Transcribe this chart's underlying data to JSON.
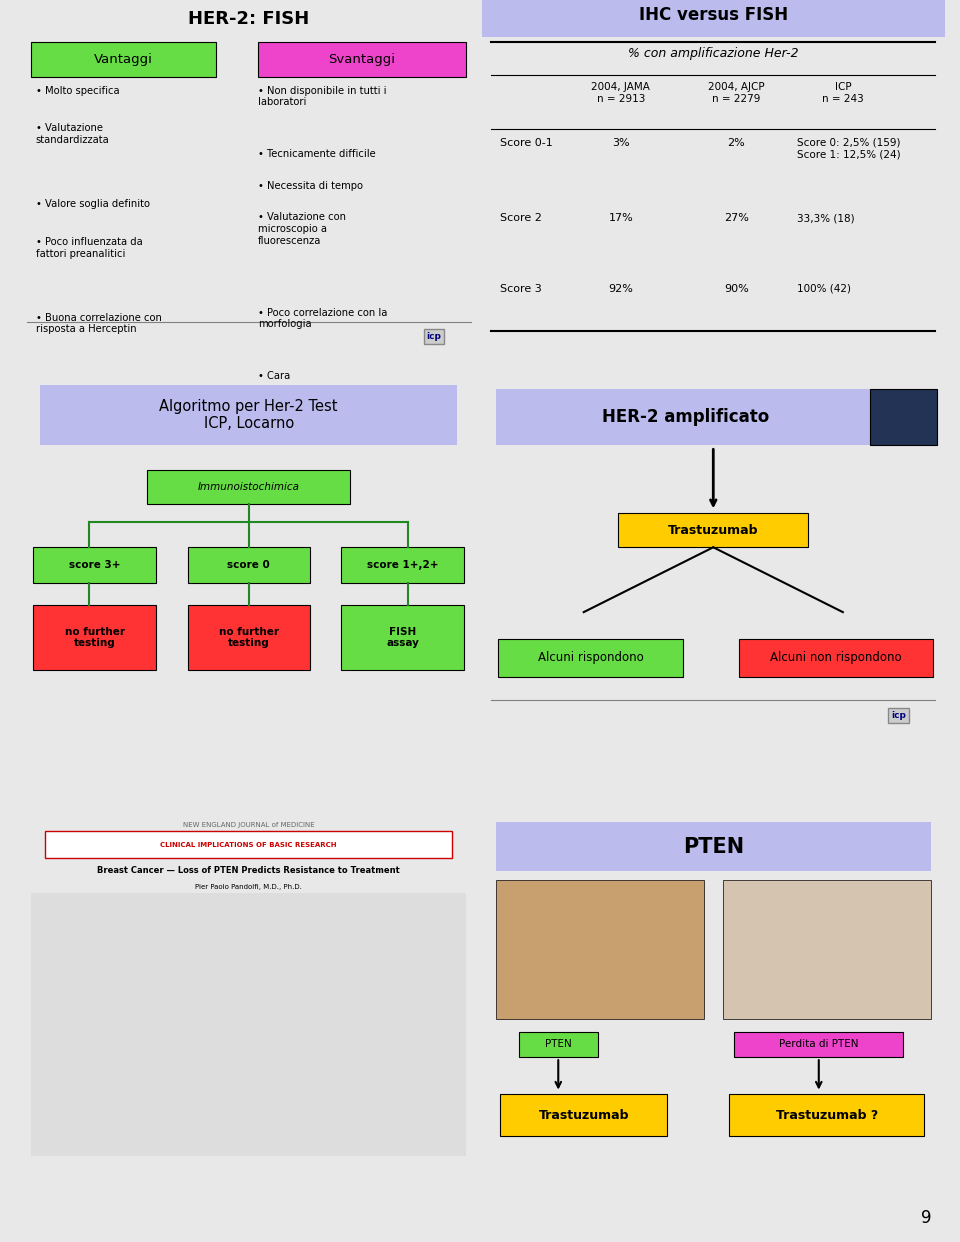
{
  "bg_color": "#e8e8e8",
  "panel_bg": "#ffffff",
  "slide_page": "9",
  "panel1": {
    "title": "HER-2: FISH",
    "box1_label": "Vantaggi",
    "box1_color": "#66dd44",
    "box2_label": "Svantaggi",
    "box2_color": "#ee44cc",
    "left_bullets": [
      "Molto specifica",
      "Valutazione\nstandardizzata",
      "Valore soglia definito",
      "Poco influenzata da\nfattori preanalitici",
      "Buona correlazione con\nrisposta a Herceptin"
    ],
    "right_bullets": [
      "Non disponibile in tutti i\nlaboratori",
      "Tecnicamente difficile",
      "Necessita di tempo",
      "Valutazione con\nmicroscopio a\nfluorescenza",
      "Poco correlazione con la\nmorfologia",
      "Cara"
    ]
  },
  "panel2": {
    "header_color": "#bbbbee",
    "title": "IHC versus FISH",
    "subtitle": "% con amplificazione Her-2",
    "col1_header": "2004, JAMA\nn = 2913",
    "col2_header": "2004, AJCP\nn = 2279",
    "col3_header": "ICP\nn = 243",
    "rows": [
      {
        "label": "Score 0-1",
        "col1": "3%",
        "col2": "2%",
        "col3": "Score 0: 2,5% (159)\nScore 1: 12,5% (24)"
      },
      {
        "label": "Score 2",
        "col1": "17%",
        "col2": "27%",
        "col3": "33,3% (18)"
      },
      {
        "label": "Score 3",
        "col1": "92%",
        "col2": "90%",
        "col3": "100% (42)"
      }
    ]
  },
  "panel3": {
    "title": "Algoritmo per Her-2 Test\nICP, Locarno",
    "title_bg": "#bbbbee",
    "box_immuno": "Immunoistochimica",
    "box_immuno_color": "#66dd44",
    "boxes": [
      {
        "label": "score 3+",
        "color": "#66dd44"
      },
      {
        "label": "score 0",
        "color": "#66dd44"
      },
      {
        "label": "score 1+,2+",
        "color": "#66dd44"
      }
    ],
    "bottom_boxes": [
      {
        "label": "no further\ntesting",
        "color": "#ff3333"
      },
      {
        "label": "no further\ntesting",
        "color": "#ff3333"
      },
      {
        "label": "FISH\nassay",
        "color": "#66dd44"
      }
    ]
  },
  "panel4": {
    "title": "HER-2 amplificato",
    "trastuzumab_label": "Trastuzumab",
    "trastuzumab_color": "#ffcc00",
    "left_box_label": "Alcuni rispondono",
    "left_box_color": "#66dd44",
    "right_box_label": "Alcuni non rispondono",
    "right_box_color": "#ff3333"
  },
  "panel5": {
    "journal": "NEW ENGLAND JOURNAL of MEDICINE",
    "section": "CLINICAL IMPLICATIONS OF BASIC RESEARCH",
    "title": "Breast Cancer — Loss of PTEN Predicts Resistance to Treatment",
    "author": "Pier Paolo Pandolfi, M.D., Ph.D."
  },
  "panel6": {
    "title": "PTEN",
    "left_label": "PTEN",
    "left_label_color": "#66dd44",
    "right_label": "Perdita di PTEN",
    "right_label_color": "#ee44cc",
    "left_arrow_label": "Trastuzumab",
    "right_arrow_label": "Trastuzumab ?",
    "arrow_box_color": "#ffcc00"
  }
}
